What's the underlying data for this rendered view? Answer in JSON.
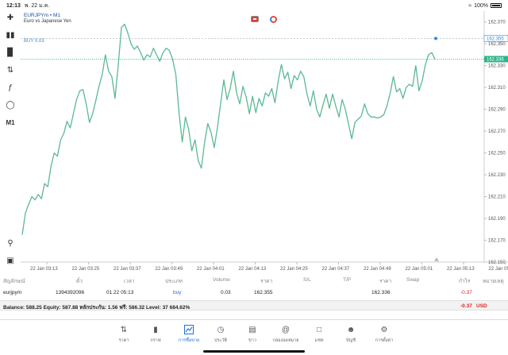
{
  "status_bar": {
    "time": "12:13",
    "date": "พ. 22 ม.ค.",
    "battery": "100%"
  },
  "toolbar": {
    "timeframe_label": "M1"
  },
  "chart": {
    "symbol_title": "EURJPYm • M1",
    "subtitle": "Euro vs Japanese Yen",
    "order_label": "BUY 0.03",
    "colors": {
      "line": "#5bb993",
      "bid": "#2fb38a",
      "order": "#2a8be0",
      "order_line": "#b6b6b6"
    }
  },
  "chart_data": {
    "type": "line",
    "ylim": [
      162.15,
      162.38
    ],
    "yticks": [
      "162.370",
      "162.350",
      "162.330",
      "162.310",
      "162.290",
      "162.270",
      "162.250",
      "162.230",
      "162.210",
      "162.190",
      "162.170",
      "162.150"
    ],
    "xticks": [
      "22 Jan 03:13",
      "22 Jan 03:25",
      "22 Jan 03:37",
      "22 Jan 03:49",
      "22 Jan 04:01",
      "22 Jan 04:13",
      "22 Jan 04:25",
      "22 Jan 04:37",
      "22 Jan 04:49",
      "22 Jan 05:01",
      "22 Jan 05:13",
      "22 Jan 05:25"
    ],
    "order_price": 162.355,
    "order_price_label": "162.355",
    "bid_price": 162.336,
    "bid_price_label": "162.336",
    "values": [
      162.175,
      162.195,
      162.203,
      162.21,
      162.207,
      162.212,
      162.208,
      162.222,
      162.219,
      162.238,
      162.25,
      162.247,
      162.262,
      162.268,
      162.279,
      162.273,
      162.286,
      162.299,
      162.307,
      162.308,
      162.295,
      162.278,
      162.286,
      162.298,
      162.311,
      162.322,
      162.34,
      162.325,
      162.32,
      162.3,
      162.33,
      162.365,
      162.368,
      162.36,
      162.35,
      162.345,
      162.348,
      162.342,
      162.335,
      162.34,
      162.338,
      162.346,
      162.34,
      162.334,
      162.342,
      162.346,
      162.344,
      162.336,
      162.322,
      162.287,
      162.26,
      162.283,
      162.272,
      162.252,
      162.262,
      162.243,
      162.236,
      162.26,
      162.277,
      162.269,
      162.255,
      162.273,
      162.295,
      162.317,
      162.299,
      162.309,
      162.325,
      162.305,
      162.295,
      162.311,
      162.301,
      162.286,
      162.302,
      162.287,
      162.3,
      162.293,
      162.305,
      162.302,
      162.309,
      162.296,
      162.316,
      162.331,
      162.318,
      162.324,
      162.309,
      162.321,
      162.317,
      162.325,
      162.32,
      162.304,
      162.293,
      162.307,
      162.29,
      162.283,
      162.294,
      162.304,
      162.291,
      162.304,
      162.293,
      162.283,
      162.299,
      162.29,
      162.276,
      162.263,
      162.278,
      162.281,
      162.284,
      162.295,
      162.286,
      162.283,
      162.283,
      162.282,
      162.283,
      162.285,
      162.293,
      162.305,
      162.32,
      162.306,
      162.309,
      162.3,
      162.31,
      162.313,
      162.311,
      162.33,
      162.307,
      162.316,
      162.331,
      162.34,
      162.342,
      162.336
    ]
  },
  "table": {
    "headers": [
      "สัญลักษณ์",
      "ตั๋ว",
      "เวลา",
      "ประเภท",
      "Volume",
      "ราคา",
      "S/L",
      "T/P",
      "ราคา",
      "Swap",
      "กำไร",
      "หมายเหตุ"
    ],
    "row": {
      "symbol": "eurjpym",
      "ticket": "1394392096",
      "time": "01.22 05:13",
      "type": "buy",
      "volume": "0.03",
      "open_price": "162.355",
      "current_price": "162.336",
      "profit": "-0.37"
    }
  },
  "balance": {
    "text": "Balance: 588.25 Equity: 587.88 หลักประกัน: 1.56 ฟรี: 586.32 Level: 37 684.62%",
    "profit": "-0.37",
    "currency": "USD"
  },
  "nav": [
    {
      "label": "ราคา",
      "icon": "quotes-arrows-icon"
    },
    {
      "label": "กราฟ",
      "icon": "chart-bars-icon"
    },
    {
      "label": "การซื้อขาย",
      "icon": "trade-icon"
    },
    {
      "label": "ประวัติ",
      "icon": "history-icon"
    },
    {
      "label": "ข่าว",
      "icon": "news-icon"
    },
    {
      "label": "กล่องจดหมาย",
      "icon": "mailbox-icon"
    },
    {
      "label": "แชท",
      "icon": "chat-icon"
    },
    {
      "label": "บัญชี",
      "icon": "account-icon"
    },
    {
      "label": "การตั้งค่า",
      "icon": "settings-icon"
    }
  ]
}
